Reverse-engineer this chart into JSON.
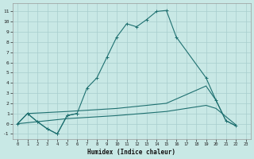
{
  "xlabel": "Humidex (Indice chaleur)",
  "xlim": [
    -0.5,
    23.5
  ],
  "ylim": [
    -1.5,
    11.8
  ],
  "xticks": [
    0,
    1,
    2,
    3,
    4,
    5,
    6,
    7,
    8,
    9,
    10,
    11,
    12,
    13,
    14,
    15,
    16,
    17,
    18,
    19,
    20,
    21,
    22,
    23
  ],
  "yticks": [
    -1,
    0,
    1,
    2,
    3,
    4,
    5,
    6,
    7,
    8,
    9,
    10,
    11
  ],
  "bg_color": "#c8e8e5",
  "line_color": "#1e7070",
  "grid_color": "#a8cece",
  "main_x": [
    0,
    1,
    2,
    3,
    4,
    5,
    6,
    7,
    8,
    9,
    10,
    11,
    12,
    13,
    14,
    15,
    16,
    19,
    20,
    21,
    22
  ],
  "main_y": [
    0.0,
    1.0,
    0.2,
    -0.5,
    -1.0,
    0.8,
    1.0,
    3.5,
    4.5,
    6.5,
    8.5,
    9.8,
    9.5,
    10.2,
    11.0,
    11.1,
    8.5,
    4.5,
    2.3,
    0.3,
    -0.2
  ],
  "loop_x": [
    1,
    2,
    3,
    4,
    5,
    6
  ],
  "loop_y": [
    1.0,
    0.2,
    -0.5,
    -1.0,
    0.8,
    1.0
  ],
  "diag1_x": [
    0,
    1,
    5,
    10,
    15,
    19,
    20,
    21,
    22
  ],
  "diag1_y": [
    0.0,
    1.0,
    1.2,
    1.5,
    2.0,
    3.7,
    2.3,
    0.3,
    -0.2
  ],
  "diag2_x": [
    0,
    5,
    10,
    15,
    19,
    20,
    22
  ],
  "diag2_y": [
    0.0,
    0.5,
    0.8,
    1.2,
    1.8,
    1.5,
    -0.1
  ]
}
